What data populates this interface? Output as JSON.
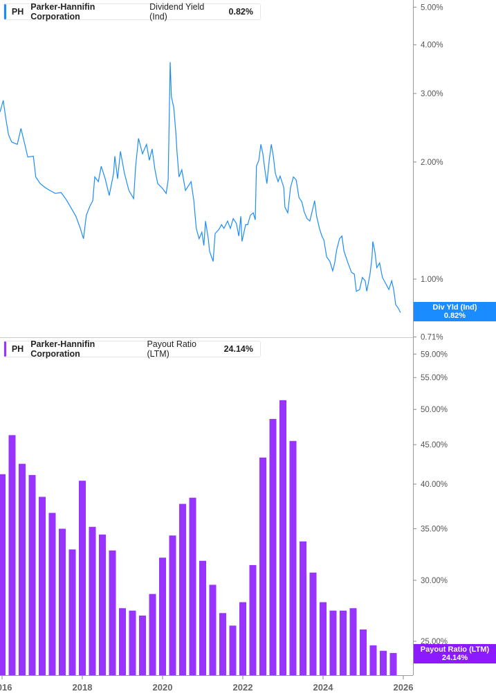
{
  "colors": {
    "dividend_yield": "#1a8cff",
    "payout_ratio": "#9933ff",
    "payout_label_bg": "#8c1aff"
  },
  "top_legend": {
    "ticker": "PH",
    "company": "Parker-Hannifin Corporation",
    "metric": "Dividend Yield (Ind)",
    "value": "0.82%"
  },
  "bottom_legend": {
    "ticker": "PH",
    "company": "Parker-Hannifin Corporation",
    "metric": "Payout Ratio (LTM)",
    "value": "24.14%"
  },
  "top_end_label": {
    "name": "Div Yld (Ind)",
    "value": "0.82%"
  },
  "bottom_end_label": {
    "name": "Payout Ratio (LTM)",
    "value": "24.14%"
  },
  "chart_data": [
    {
      "type": "line",
      "series_name": "Dividend Yield (Ind)",
      "y_scale": "log",
      "ylim": [
        0.71,
        5.0
      ],
      "xlim": [
        2016,
        2026.2
      ],
      "y_ticks": [
        "5.00%",
        "4.00%",
        "3.00%",
        "2.00%",
        "1.00%",
        "0.71%"
      ],
      "y_tick_values": [
        5,
        4,
        3,
        2,
        1,
        0.71
      ],
      "x": [
        2015.95,
        2016.03,
        2016.09,
        2016.16,
        2016.24,
        2016.38,
        2016.47,
        2016.57,
        2016.64,
        2016.78,
        2016.84,
        2016.95,
        2017.07,
        2017.19,
        2017.33,
        2017.47,
        2017.6,
        2017.71,
        2017.84,
        2017.95,
        2018.03,
        2018.1,
        2018.19,
        2018.26,
        2018.31,
        2018.4,
        2018.47,
        2018.57,
        2018.67,
        2018.78,
        2018.81,
        2018.88,
        2018.95,
        2019.05,
        2019.16,
        2019.28,
        2019.33,
        2019.4,
        2019.5,
        2019.6,
        2019.67,
        2019.74,
        2019.81,
        2019.88,
        2020.0,
        2020.09,
        2020.14,
        2020.19,
        2020.22,
        2020.28,
        2020.33,
        2020.36,
        2020.41,
        2020.48,
        2020.57,
        2020.71,
        2020.78,
        2020.84,
        2020.91,
        2020.98,
        2021.03,
        2021.07,
        2021.14,
        2021.17,
        2021.26,
        2021.31,
        2021.4,
        2021.47,
        2021.53,
        2021.62,
        2021.69,
        2021.76,
        2021.84,
        2021.9,
        2021.95,
        2021.98,
        2022.07,
        2022.12,
        2022.19,
        2022.26,
        2022.31,
        2022.34,
        2022.4,
        2022.45,
        2022.5,
        2022.55,
        2022.6,
        2022.66,
        2022.71,
        2022.76,
        2022.81,
        2022.88,
        2022.93,
        2023.02,
        2023.05,
        2023.12,
        2023.19,
        2023.26,
        2023.33,
        2023.4,
        2023.47,
        2023.53,
        2023.6,
        2023.67,
        2023.74,
        2023.79,
        2023.84,
        2023.91,
        2023.97,
        2024.02,
        2024.09,
        2024.17,
        2024.24,
        2024.29,
        2024.34,
        2024.41,
        2024.47,
        2024.52,
        2024.57,
        2024.62,
        2024.71,
        2024.78,
        2024.83,
        2024.91,
        2024.98,
        2025.05,
        2025.09,
        2025.17,
        2025.22,
        2025.24,
        2025.29,
        2025.34,
        2025.41,
        2025.48,
        2025.57,
        2025.64,
        2025.71,
        2025.76,
        2025.81,
        2025.88,
        2025.93
      ],
      "y": [
        2.69,
        2.88,
        2.6,
        2.35,
        2.25,
        2.22,
        2.44,
        2.21,
        2.06,
        2.07,
        1.83,
        1.76,
        1.72,
        1.69,
        1.66,
        1.67,
        1.6,
        1.53,
        1.45,
        1.35,
        1.27,
        1.46,
        1.54,
        1.59,
        1.83,
        1.78,
        1.95,
        1.81,
        1.64,
        1.87,
        2.07,
        1.81,
        2.13,
        1.87,
        1.69,
        1.61,
        1.95,
        2.3,
        2.1,
        2.22,
        2.02,
        2.16,
        1.91,
        1.76,
        1.71,
        1.66,
        1.8,
        3.61,
        2.94,
        2.76,
        2.39,
        2.12,
        1.83,
        1.91,
        1.69,
        1.78,
        1.59,
        1.35,
        1.27,
        1.32,
        1.22,
        1.41,
        1.27,
        1.18,
        1.11,
        1.31,
        1.34,
        1.38,
        1.35,
        1.41,
        1.35,
        1.43,
        1.39,
        1.29,
        1.45,
        1.25,
        1.38,
        1.38,
        1.46,
        1.48,
        1.42,
        1.95,
        2.02,
        2.22,
        2.1,
        1.91,
        1.76,
        2.03,
        2.22,
        2.07,
        1.87,
        1.78,
        1.84,
        1.72,
        1.53,
        1.48,
        1.72,
        1.83,
        1.8,
        1.62,
        1.58,
        1.49,
        1.43,
        1.41,
        1.51,
        1.59,
        1.45,
        1.35,
        1.29,
        1.26,
        1.14,
        1.11,
        1.05,
        1.1,
        1.19,
        1.27,
        1.29,
        1.18,
        1.14,
        1.1,
        1.04,
        1.03,
        0.93,
        0.94,
        1.01,
        0.99,
        0.93,
        1.03,
        1.14,
        1.25,
        1.18,
        1.07,
        1.1,
        1.01,
        0.97,
        0.94,
        0.99,
        0.94,
        0.86,
        0.84,
        0.82
      ]
    },
    {
      "type": "bar",
      "series_name": "Payout Ratio (LTM)",
      "y_scale": "log",
      "ylim": [
        22.6,
        59.0
      ],
      "y_ticks": [
        "59.00%",
        "55.00%",
        "50.00%",
        "45.00%",
        "40.00%",
        "35.00%",
        "30.00%",
        "25.00%"
      ],
      "y_tick_values": [
        59,
        55,
        50,
        45,
        40,
        35,
        30,
        25
      ],
      "x_ticks": [
        "2016",
        "2018",
        "2020",
        "2022",
        "2024",
        "2026"
      ],
      "x_tick_values": [
        2016,
        2018,
        2020,
        2022,
        2024,
        2026
      ],
      "categories": [
        "Q1 2016",
        "Q2 2016",
        "Q3 2016",
        "Q4 2016",
        "Q1 2017",
        "Q2 2017",
        "Q3 2017",
        "Q4 2017",
        "Q1 2018",
        "Q2 2018",
        "Q3 2018",
        "Q4 2018",
        "Q1 2019",
        "Q2 2019",
        "Q3 2019",
        "Q4 2019",
        "Q1 2020",
        "Q2 2020",
        "Q3 2020",
        "Q4 2020",
        "Q1 2021",
        "Q2 2021",
        "Q3 2021",
        "Q4 2021",
        "Q1 2022",
        "Q2 2022",
        "Q3 2022",
        "Q4 2022",
        "Q1 2023",
        "Q2 2023",
        "Q3 2023",
        "Q4 2023",
        "Q1 2024",
        "Q2 2024",
        "Q3 2024",
        "Q4 2024",
        "Q1 2025",
        "Q2 2025",
        "Q3 2025",
        "Q4 2025"
      ],
      "values": [
        41.2,
        46.3,
        42.5,
        41.1,
        38.5,
        36.7,
        35.0,
        32.9,
        40.4,
        35.2,
        34.4,
        32.8,
        27.6,
        27.4,
        27.0,
        28.8,
        32.1,
        34.3,
        37.7,
        38.4,
        31.8,
        29.6,
        27.2,
        26.2,
        28.1,
        31.4,
        43.3,
        48.6,
        51.4,
        45.5,
        33.7,
        30.7,
        28.1,
        27.4,
        27.4,
        27.6,
        25.9,
        24.7,
        24.3,
        24.14
      ]
    }
  ]
}
